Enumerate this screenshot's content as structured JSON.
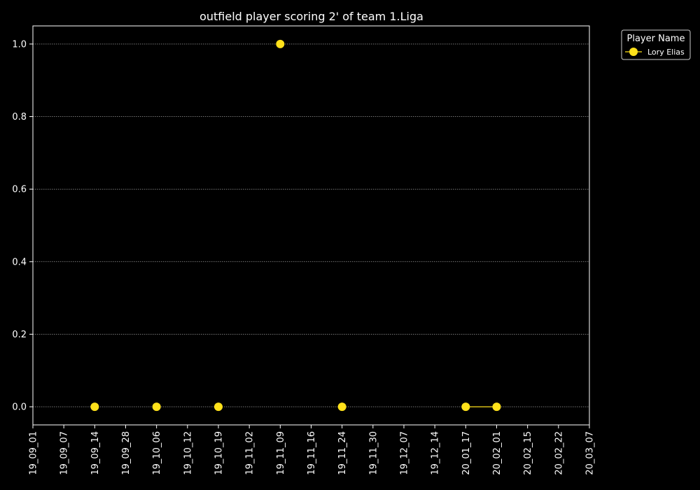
{
  "chart_data": {
    "type": "line",
    "title": "outfield player scoring 2' of team 1.Liga",
    "xlabel": "",
    "ylabel": "",
    "x_ticks": [
      "19_09_01",
      "19_09_07",
      "19_09_14",
      "19_09_28",
      "19_10_06",
      "19_10_12",
      "19_10_19",
      "19_11_02",
      "19_11_09",
      "19_11_16",
      "19_11_24",
      "19_11_30",
      "19_12_07",
      "19_12_14",
      "20_01_17",
      "20_02_01",
      "20_02_15",
      "20_02_22",
      "20_03_07"
    ],
    "y_ticks": [
      "0.0",
      "0.2",
      "0.4",
      "0.6",
      "0.8",
      "1.0"
    ],
    "ylim": [
      -0.05,
      1.05
    ],
    "grid": "horizontal",
    "legend": {
      "title": "Player Name",
      "placement": "outside-top-right"
    },
    "series": [
      {
        "name": "Lory Elias",
        "color": "#ffe11a",
        "points": [
          {
            "x": "19_09_14",
            "y": 0
          },
          {
            "x": "19_10_06",
            "y": 0
          },
          {
            "x": "19_10_19",
            "y": 0
          },
          {
            "x": "19_11_09",
            "y": 1
          },
          {
            "x": "19_11_24",
            "y": 0
          },
          {
            "x": "20_01_17",
            "y": 0
          },
          {
            "x": "20_02_01",
            "y": 0
          }
        ],
        "connected_segments": [
          [
            "20_01_17",
            "20_02_01"
          ]
        ]
      }
    ]
  }
}
